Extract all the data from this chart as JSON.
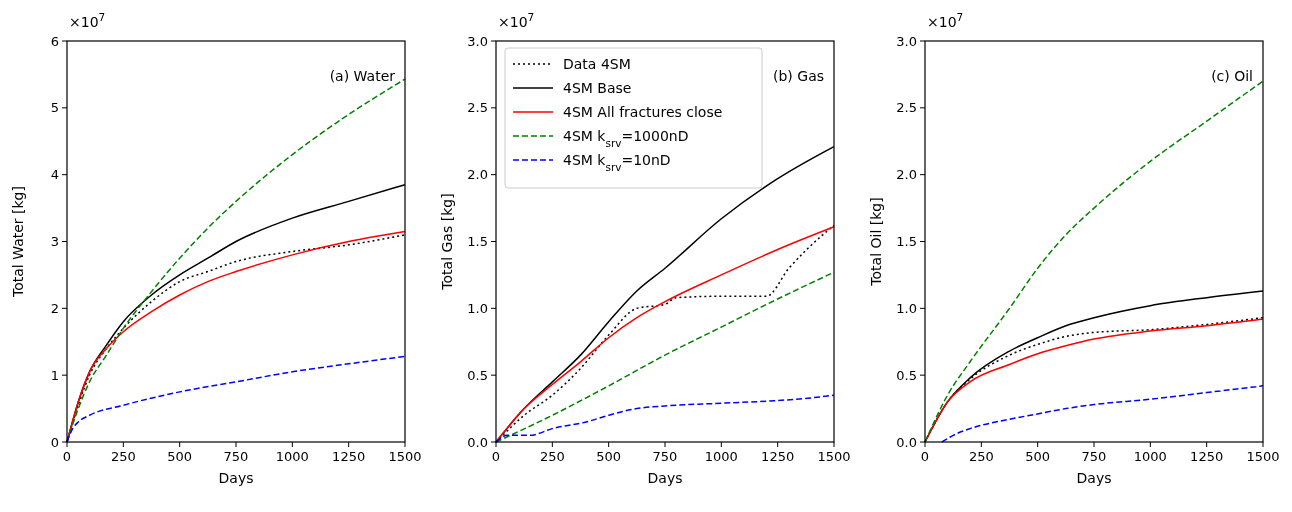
{
  "chart_data": [
    {
      "type": "line",
      "title": "(a) Water",
      "xlabel": "Days",
      "ylabel": "Total Water [kg]",
      "annotations": [
        "×10$^{7}$"
      ],
      "xlim": [
        0,
        1500
      ],
      "xticks": [
        0,
        250,
        500,
        750,
        1000,
        1250,
        1500
      ],
      "ylim": [
        0,
        6
      ],
      "yticks": [
        0,
        1,
        2,
        3,
        4,
        5,
        6
      ],
      "legend": false,
      "series": [
        {
          "color": "#000000",
          "line_style": "dotted",
          "x": [
            0,
            50,
            100,
            175,
            250,
            375,
            500,
            625,
            750,
            1000,
            1250,
            1500
          ],
          "values": [
            0,
            0.55,
            1.0,
            1.4,
            1.7,
            2.1,
            2.4,
            2.55,
            2.7,
            2.85,
            2.95,
            3.1
          ]
        },
        {
          "color": "#000000",
          "line_style": "solid",
          "x": [
            0,
            50,
            100,
            175,
            250,
            375,
            500,
            625,
            750,
            1000,
            1250,
            1500
          ],
          "values": [
            0,
            0.6,
            1.05,
            1.45,
            1.8,
            2.2,
            2.5,
            2.75,
            3.0,
            3.35,
            3.6,
            3.85
          ]
        },
        {
          "color": "#ff0000",
          "line_style": "solid",
          "x": [
            0,
            50,
            100,
            175,
            250,
            375,
            500,
            625,
            750,
            1000,
            1250,
            1500
          ],
          "values": [
            0,
            0.6,
            1.05,
            1.4,
            1.65,
            1.95,
            2.2,
            2.4,
            2.55,
            2.8,
            3.0,
            3.15
          ]
        },
        {
          "color": "#008000",
          "line_style": "dashed",
          "x": [
            0,
            50,
            100,
            175,
            250,
            375,
            500,
            625,
            750,
            1000,
            1250,
            1500
          ],
          "values": [
            0,
            0.5,
            0.9,
            1.3,
            1.7,
            2.25,
            2.75,
            3.2,
            3.6,
            4.3,
            4.9,
            5.43
          ]
        },
        {
          "color": "#0000ff",
          "line_style": "dashed",
          "x": [
            0,
            25,
            50,
            100,
            250,
            500,
            750,
            1000,
            1250,
            1500
          ],
          "values": [
            0,
            0.2,
            0.3,
            0.4,
            0.55,
            0.75,
            0.9,
            1.05,
            1.17,
            1.28
          ]
        }
      ]
    },
    {
      "type": "line",
      "title": "(b) Gas",
      "xlabel": "Days",
      "ylabel": "Total Gas [kg]",
      "annotations": [
        "×10$^{7}$"
      ],
      "xlim": [
        0,
        1500
      ],
      "xticks": [
        0,
        250,
        500,
        750,
        1000,
        1250,
        1500
      ],
      "ylim": [
        0,
        3
      ],
      "yticks": [
        {
          "value": 0,
          "label": "0.0"
        },
        {
          "value": 0.5,
          "label": "0.5"
        },
        {
          "value": 1,
          "label": "1.0"
        },
        {
          "value": 1.5,
          "label": "1.5"
        },
        {
          "value": 2,
          "label": "2.0"
        },
        {
          "value": 2.5,
          "label": "2.5"
        },
        {
          "value": 3,
          "label": "3.0"
        }
      ],
      "legend": "top left",
      "series": [
        {
          "name": "Data 4SM",
          "color": "#000000",
          "line_style": "dotted",
          "x": [
            0,
            125,
            250,
            375,
            500,
            625,
            750,
            800,
            1000,
            1200,
            1300,
            1450,
            1500
          ],
          "values": [
            0,
            0.2,
            0.35,
            0.55,
            0.8,
            1.0,
            1.03,
            1.08,
            1.09,
            1.09,
            1.3,
            1.55,
            1.62
          ]
        },
        {
          "name": "4SM Base",
          "color": "#000000",
          "line_style": "solid",
          "x": [
            0,
            125,
            250,
            375,
            500,
            625,
            750,
            1000,
            1250,
            1500
          ],
          "values": [
            0,
            0.25,
            0.45,
            0.65,
            0.9,
            1.13,
            1.3,
            1.67,
            1.97,
            2.21
          ]
        },
        {
          "name": "4SM All fractures close",
          "color": "#ff0000",
          "line_style": "solid",
          "x": [
            0,
            125,
            250,
            375,
            500,
            625,
            750,
            1000,
            1250,
            1500
          ],
          "values": [
            0,
            0.25,
            0.43,
            0.6,
            0.78,
            0.93,
            1.05,
            1.25,
            1.44,
            1.61
          ]
        },
        {
          "name": "4SM k$_{srv}$=1000nD",
          "color": "#008000",
          "line_style": "dashed",
          "x": [
            0,
            250,
            500,
            750,
            1000,
            1250,
            1500
          ],
          "values": [
            0,
            0.2,
            0.42,
            0.65,
            0.86,
            1.07,
            1.27
          ]
        },
        {
          "name": "4SM k$_{srv}$=10nD",
          "color": "#0000ff",
          "line_style": "dashed",
          "x": [
            0,
            50,
            150,
            250,
            400,
            500,
            625,
            750,
            1000,
            1250,
            1400,
            1500
          ],
          "values": [
            0,
            0.05,
            0.05,
            0.1,
            0.15,
            0.2,
            0.25,
            0.27,
            0.29,
            0.31,
            0.33,
            0.35
          ]
        }
      ]
    },
    {
      "type": "line",
      "title": "(c) Oil",
      "xlabel": "Days",
      "ylabel": "Total Oil [kg]",
      "annotations": [
        "×10$^{7}$"
      ],
      "xlim": [
        0,
        1500
      ],
      "xticks": [
        0,
        250,
        500,
        750,
        1000,
        1250,
        1500
      ],
      "ylim": [
        0,
        3
      ],
      "yticks": [
        {
          "value": 0,
          "label": "0.0"
        },
        {
          "value": 0.5,
          "label": "0.5"
        },
        {
          "value": 1,
          "label": "1.0"
        },
        {
          "value": 1.5,
          "label": "1.5"
        },
        {
          "value": 2,
          "label": "2.0"
        },
        {
          "value": 2.5,
          "label": "2.5"
        },
        {
          "value": 3,
          "label": "3.0"
        }
      ],
      "legend": false,
      "series": [
        {
          "color": "#000000",
          "line_style": "dotted",
          "x": [
            0,
            100,
            200,
            375,
            500,
            625,
            750,
            1000,
            1250,
            1500
          ],
          "values": [
            0,
            0.3,
            0.47,
            0.65,
            0.73,
            0.79,
            0.82,
            0.84,
            0.88,
            0.93
          ]
        },
        {
          "color": "#000000",
          "line_style": "solid",
          "x": [
            0,
            100,
            200,
            375,
            500,
            625,
            750,
            1000,
            1250,
            1500
          ],
          "values": [
            0,
            0.3,
            0.48,
            0.68,
            0.78,
            0.87,
            0.93,
            1.02,
            1.08,
            1.13
          ]
        },
        {
          "color": "#ff0000",
          "line_style": "solid",
          "x": [
            0,
            100,
            200,
            375,
            500,
            625,
            750,
            1000,
            1250,
            1500
          ],
          "values": [
            0,
            0.3,
            0.45,
            0.58,
            0.66,
            0.72,
            0.77,
            0.83,
            0.87,
            0.92
          ]
        },
        {
          "color": "#008000",
          "line_style": "dashed",
          "x": [
            0,
            100,
            200,
            375,
            500,
            625,
            750,
            1000,
            1250,
            1500
          ],
          "values": [
            0,
            0.35,
            0.6,
            1.0,
            1.3,
            1.55,
            1.75,
            2.1,
            2.4,
            2.7
          ]
        },
        {
          "color": "#0000ff",
          "line_style": "dashed",
          "x": [
            75,
            125,
            200,
            375,
            500,
            625,
            750,
            1000,
            1250,
            1500
          ],
          "values": [
            0,
            0.05,
            0.1,
            0.17,
            0.21,
            0.25,
            0.28,
            0.32,
            0.37,
            0.42
          ]
        }
      ]
    }
  ]
}
